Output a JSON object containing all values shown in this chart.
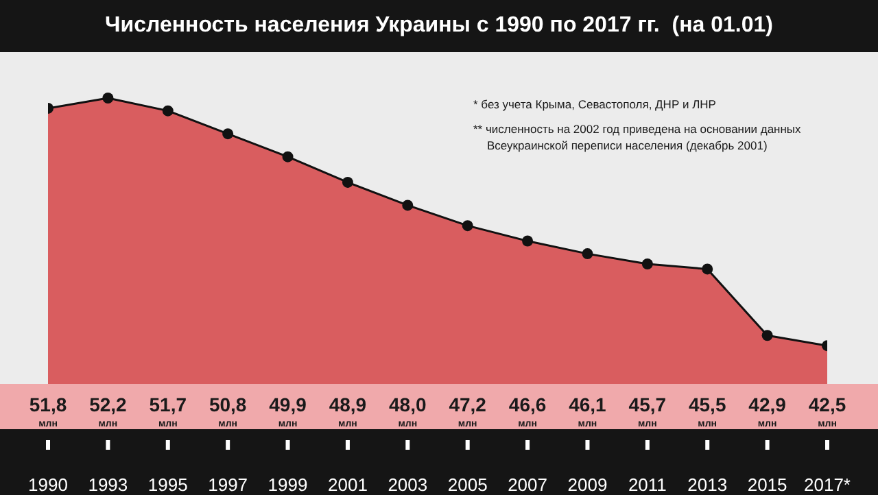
{
  "chart_data": {
    "type": "area",
    "title": "Численность населения Украины с 1990 по 2017 гг.  (на 01.01)",
    "categories": [
      "1990",
      "1993",
      "1995",
      "1997",
      "1999",
      "2001",
      "2003",
      "2005",
      "2007",
      "2009",
      "2011",
      "2013",
      "2015",
      "2017*"
    ],
    "values": [
      51.8,
      52.2,
      51.7,
      50.8,
      49.9,
      48.9,
      48.0,
      47.2,
      46.6,
      46.1,
      45.7,
      45.5,
      42.9,
      42.5
    ],
    "value_labels": [
      "51,8\nмлн",
      "52,2\nмлн",
      "51,7\nмлн",
      "50,8\nмлн",
      "49,9\nмлн",
      "48,9\nмлн",
      "48,0\nмлн",
      "47,2\nмлн",
      "46,6\nмлн",
      "46,1\nмлн",
      "45,7\nмлн",
      "45,5\nмлн",
      "42,9\nмлн",
      "42,5\nмлн"
    ],
    "color": "#d95d5f",
    "ylim": [
      41,
      54
    ],
    "marker": "circle",
    "tick_labels": "x",
    "annotations": [
      "* без учета Крыма, Севастополя, ДНР и ЛНР",
      "** численность на 2002 год приведена на основании данных Всеукраинской переписи населения (декабрь 2001)"
    ]
  }
}
